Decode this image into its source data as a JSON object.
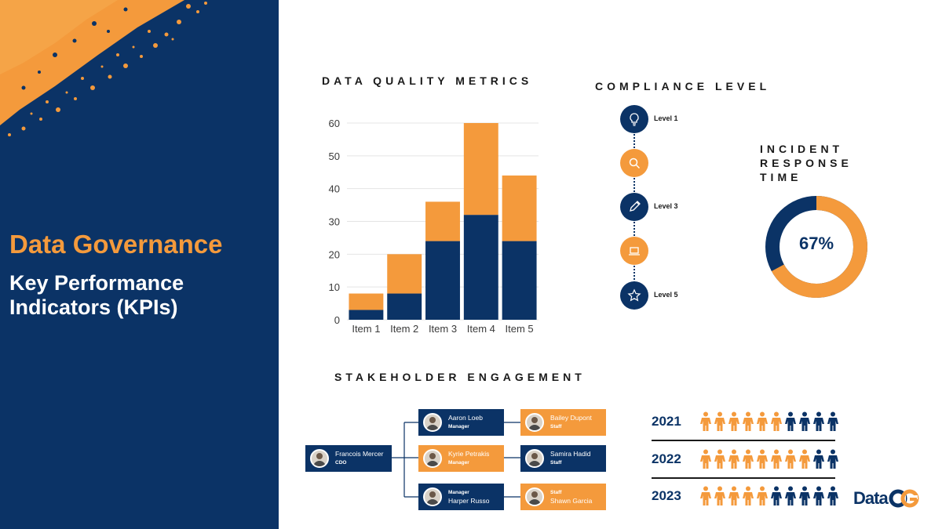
{
  "left_panel": {
    "title": "Data Governance",
    "subtitle": "Key Performance Indicators (KPIs)",
    "background_color": "#0b3366",
    "accent_color": "#f49a3c"
  },
  "sections": {
    "data_quality": "DATA QUALITY METRICS",
    "compliance": "COMPLIANCE LEVEL",
    "incident": "INCIDENT RESPONSE TIME",
    "stakeholder": "STAKEHOLDER ENGAGEMENT"
  },
  "chart_data": [
    {
      "type": "bar",
      "stacked": true,
      "title": "DATA QUALITY METRICS",
      "categories": [
        "Item 1",
        "Item 2",
        "Item 3",
        "Item 4",
        "Item 5"
      ],
      "series": [
        {
          "values": [
            3,
            8,
            24,
            32,
            24
          ],
          "color": "#0b3366"
        },
        {
          "values": [
            5,
            12,
            12,
            28,
            20
          ],
          "color": "#f49a3c"
        }
      ],
      "ylim": [
        0,
        60
      ],
      "yticks": [
        "0",
        "10",
        "20",
        "30",
        "40",
        "50",
        "60"
      ],
      "grid": true
    },
    {
      "type": "pie",
      "donut": true,
      "title": "INCIDENT RESPONSE TIME",
      "value_label": "67%",
      "values": [
        67,
        33
      ],
      "colors": [
        "#f49a3c",
        "#0b3366"
      ]
    }
  ],
  "compliance": {
    "levels": [
      {
        "label": "Level 1",
        "icon": "lightbulb-icon",
        "color": "navy"
      },
      {
        "label": "",
        "icon": "search-icon",
        "color": "orange"
      },
      {
        "label": "Level 3",
        "icon": "pencil-icon",
        "color": "navy"
      },
      {
        "label": "",
        "icon": "laptop-icon",
        "color": "orange"
      },
      {
        "label": "Level  5",
        "icon": "star-icon",
        "color": "navy"
      }
    ]
  },
  "org_chart": {
    "root": {
      "name": "Francois Mercer",
      "role": "CDO"
    },
    "managers": [
      {
        "name": "Aaron Loeb",
        "role": "Manager"
      },
      {
        "name": "Kyrie Petrakis",
        "role": "Manager"
      },
      {
        "name": "Harper Russo",
        "role": "Manager"
      }
    ],
    "staff": [
      {
        "name": "Bailey Dupont",
        "role": "Staff"
      },
      {
        "name": "Samira Hadid",
        "role": "Staff"
      },
      {
        "name": "Shawn Garcia",
        "role": "Staff"
      }
    ]
  },
  "engagement": {
    "total_icons": 10,
    "rows": [
      {
        "year": "2021",
        "orange": 6
      },
      {
        "year": "2022",
        "orange": 8
      },
      {
        "year": "2023",
        "orange": 5
      }
    ]
  },
  "logo": {
    "text": "Data",
    "mark": "CG"
  }
}
